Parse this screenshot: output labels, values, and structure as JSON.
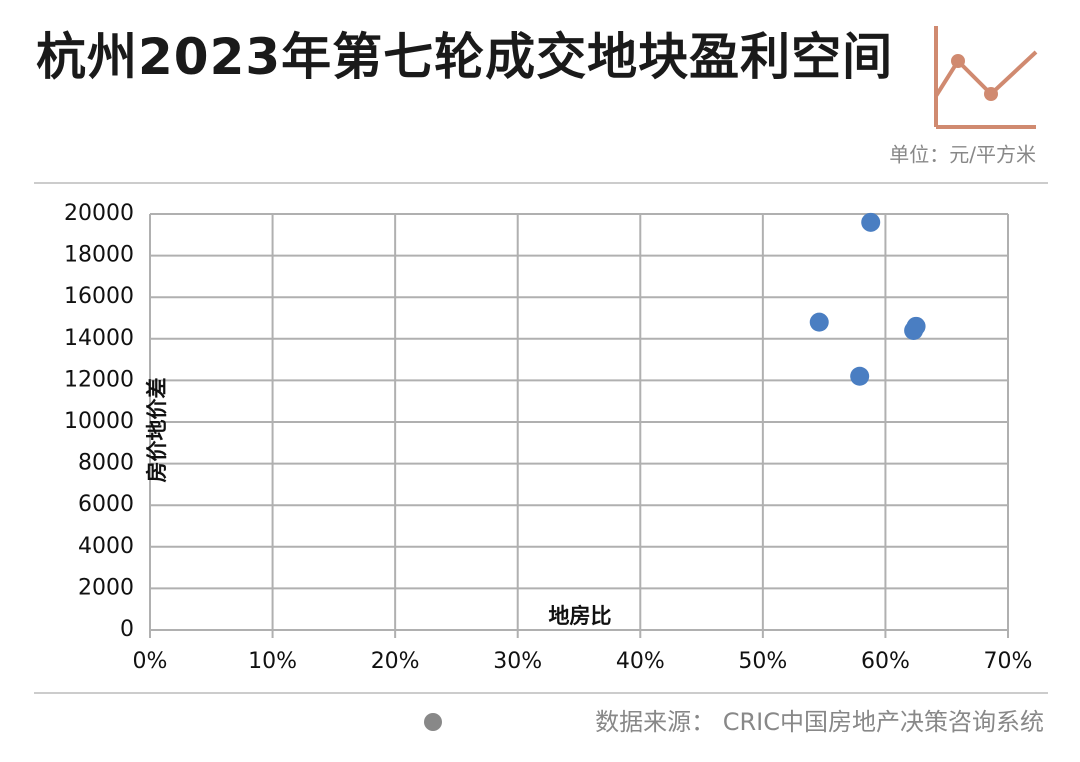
{
  "chart_data": {
    "type": "scatter",
    "title": "杭州2023年第七轮成交地块盈利空间",
    "unit": "单位：元/平方米",
    "source": "数据来源： CRIC中国房地产决策咨询系统",
    "x_label": "地房比",
    "y_label": "房价地价差",
    "series": [
      {
        "color": "#4a7ec2",
        "x": [
          54.6,
          58.8,
          57.9,
          62.5,
          62.3
        ],
        "values": [
          14800,
          19600,
          12200,
          14600,
          14400
        ]
      }
    ],
    "xlim": [
      0,
      70
    ],
    "xticks": [
      {
        "value": 0,
        "label": "0%"
      },
      {
        "value": 10,
        "label": "10%"
      },
      {
        "value": 20,
        "label": "20%"
      },
      {
        "value": 30,
        "label": "30%"
      },
      {
        "value": 40,
        "label": "40%"
      },
      {
        "value": 50,
        "label": "50%"
      },
      {
        "value": 60,
        "label": "60%"
      },
      {
        "value": 70,
        "label": "70%"
      }
    ],
    "ylim": [
      0,
      20000
    ],
    "yticks": [
      0,
      2000,
      4000,
      6000,
      8000,
      10000,
      12000,
      14000,
      16000,
      18000,
      20000
    ],
    "grid": true
  }
}
